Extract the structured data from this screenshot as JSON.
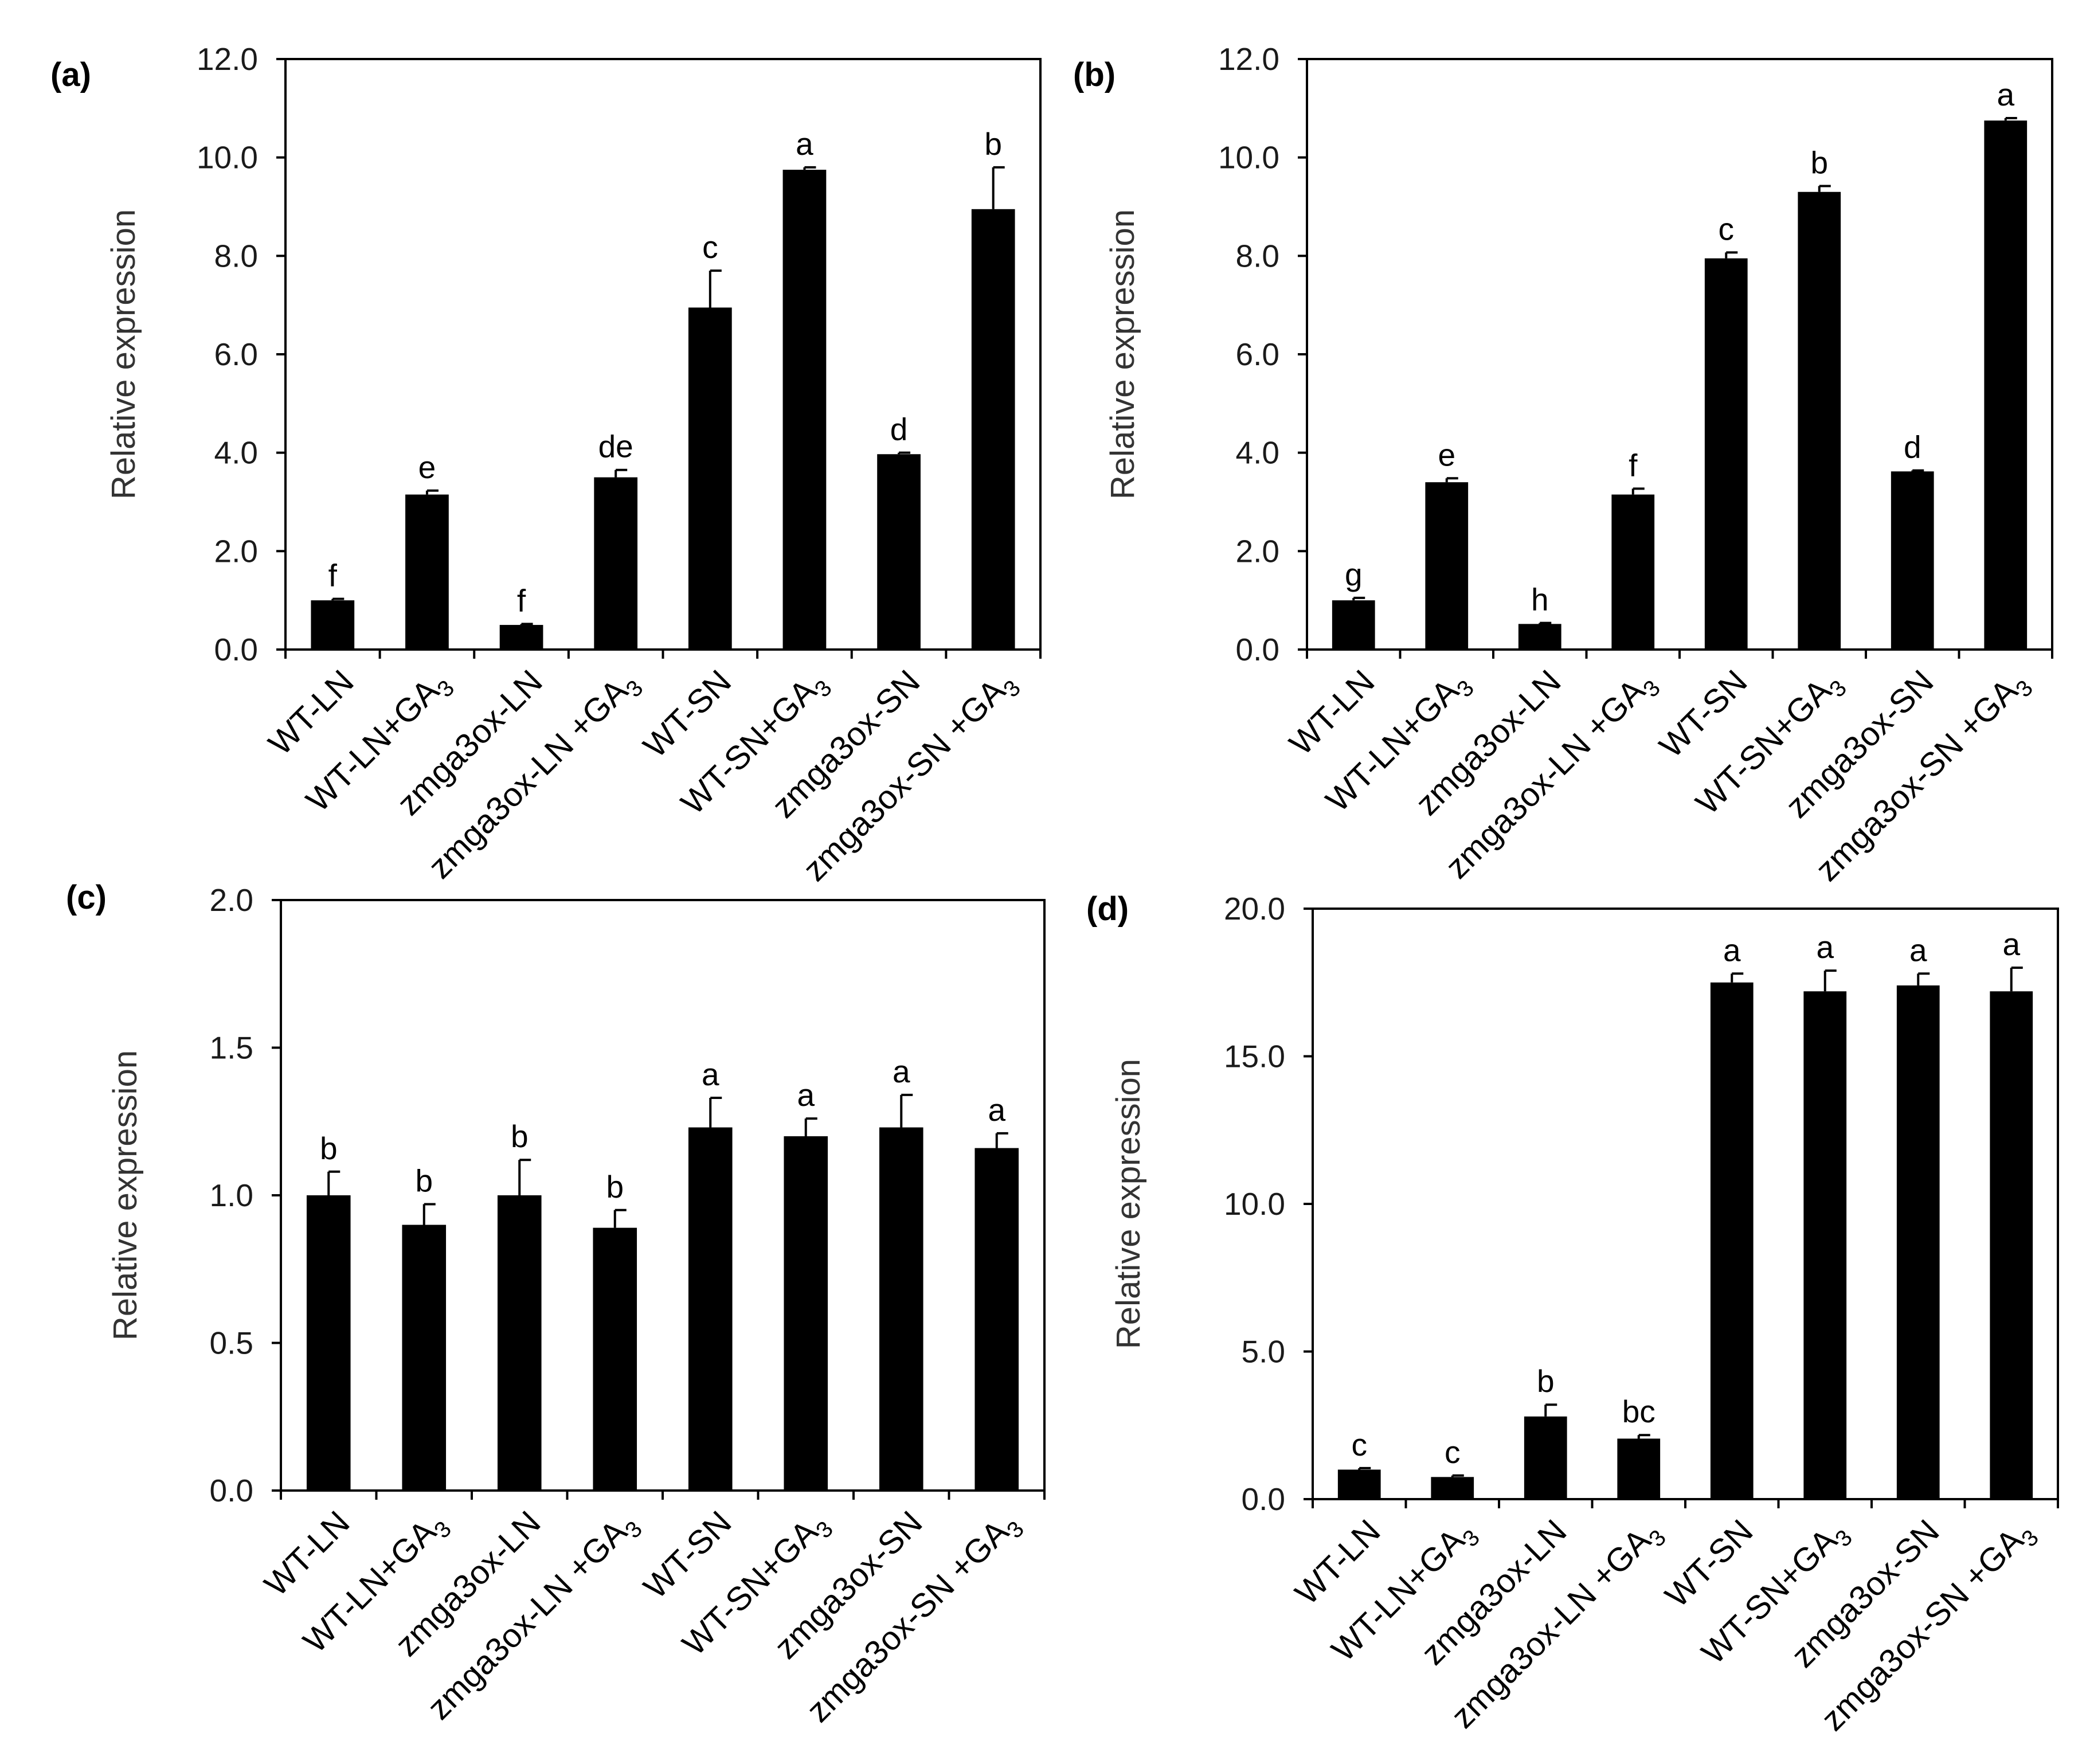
{
  "chart_data": [
    {
      "panel": "(a)",
      "type": "bar",
      "ylabel": "Relative expression",
      "ylim": [
        0,
        12
      ],
      "yticks": [
        "0.0",
        "2.0",
        "4.0",
        "6.0",
        "8.0",
        "10.0",
        "12.0"
      ],
      "categories": [
        {
          "base": "WT-LN",
          "sub": ""
        },
        {
          "base": "WT-LN+GA",
          "sub": "3"
        },
        {
          "base": "zmga3ox-LN",
          "sub": ""
        },
        {
          "base": "zmga3ox-LN +GA",
          "sub": "3"
        },
        {
          "base": "WT-SN",
          "sub": ""
        },
        {
          "base": "WT-SN+GA",
          "sub": "3"
        },
        {
          "base": "zmga3ox-SN",
          "sub": ""
        },
        {
          "base": "zmga3ox-SN +GA",
          "sub": "3"
        }
      ],
      "values": [
        1.0,
        3.15,
        0.5,
        3.5,
        6.95,
        9.75,
        3.97,
        8.95
      ],
      "errors": [
        0.03,
        0.08,
        0.02,
        0.15,
        0.75,
        0.05,
        0.03,
        0.85
      ],
      "significance": [
        "f",
        "e",
        "f",
        "de",
        "c",
        "a",
        "d",
        "b"
      ]
    },
    {
      "panel": "(b)",
      "type": "bar",
      "ylabel": "Relative expression",
      "ylim": [
        0,
        12
      ],
      "yticks": [
        "0.0",
        "2.0",
        "4.0",
        "6.0",
        "8.0",
        "10.0",
        "12.0"
      ],
      "categories": [
        {
          "base": "WT-LN",
          "sub": ""
        },
        {
          "base": "WT-LN+GA",
          "sub": "3"
        },
        {
          "base": "zmga3ox-LN",
          "sub": ""
        },
        {
          "base": "zmga3ox-LN +GA",
          "sub": "3"
        },
        {
          "base": "WT-SN",
          "sub": ""
        },
        {
          "base": "WT-SN+GA",
          "sub": "3"
        },
        {
          "base": "zmga3ox-SN",
          "sub": ""
        },
        {
          "base": "zmga3ox-SN +GA",
          "sub": "3"
        }
      ],
      "values": [
        1.0,
        3.4,
        0.52,
        3.15,
        7.95,
        9.3,
        3.62,
        10.75
      ],
      "errors": [
        0.05,
        0.08,
        0.02,
        0.12,
        0.12,
        0.12,
        0.02,
        0.05
      ],
      "significance": [
        "g",
        "e",
        "h",
        "f",
        "c",
        "b",
        "d",
        "a"
      ]
    },
    {
      "panel": "(c)",
      "type": "bar",
      "ylabel": "Relative expression",
      "ylim": [
        0,
        2
      ],
      "yticks": [
        "0.0",
        "0.5",
        "1.0",
        "1.5",
        "2.0"
      ],
      "categories": [
        {
          "base": "WT-LN",
          "sub": ""
        },
        {
          "base": "WT-LN+GA",
          "sub": "3"
        },
        {
          "base": "zmga3ox-LN",
          "sub": ""
        },
        {
          "base": "zmga3ox-LN +GA",
          "sub": "3"
        },
        {
          "base": "WT-SN",
          "sub": ""
        },
        {
          "base": "WT-SN+GA",
          "sub": "3"
        },
        {
          "base": "zmga3ox-SN",
          "sub": ""
        },
        {
          "base": "zmga3ox-SN +GA",
          "sub": "3"
        }
      ],
      "values": [
        1.0,
        0.9,
        1.0,
        0.89,
        1.23,
        1.2,
        1.23,
        1.16
      ],
      "errors": [
        0.08,
        0.07,
        0.12,
        0.06,
        0.1,
        0.06,
        0.11,
        0.05
      ],
      "significance": [
        "b",
        "b",
        "b",
        "b",
        "a",
        "a",
        "a",
        "a"
      ]
    },
    {
      "panel": "(d)",
      "type": "bar",
      "ylabel": "Relative expression",
      "ylim": [
        0,
        20
      ],
      "yticks": [
        "0.0",
        "5.0",
        "10.0",
        "15.0",
        "20.0"
      ],
      "categories": [
        {
          "base": "WT-LN",
          "sub": ""
        },
        {
          "base": "WT-LN+GA",
          "sub": "3"
        },
        {
          "base": "zmga3ox-LN",
          "sub": ""
        },
        {
          "base": "zmga3ox-LN +GA",
          "sub": "3"
        },
        {
          "base": "WT-SN",
          "sub": ""
        },
        {
          "base": "WT-SN+GA",
          "sub": "3"
        },
        {
          "base": "zmga3ox-SN",
          "sub": ""
        },
        {
          "base": "zmga3ox-SN +GA",
          "sub": "3"
        }
      ],
      "values": [
        1.0,
        0.75,
        2.8,
        2.05,
        17.5,
        17.2,
        17.4,
        17.2
      ],
      "errors": [
        0.05,
        0.05,
        0.4,
        0.12,
        0.3,
        0.7,
        0.4,
        0.8
      ],
      "significance": [
        "c",
        "c",
        "b",
        "bc",
        "a",
        "a",
        "a",
        "a"
      ]
    }
  ]
}
